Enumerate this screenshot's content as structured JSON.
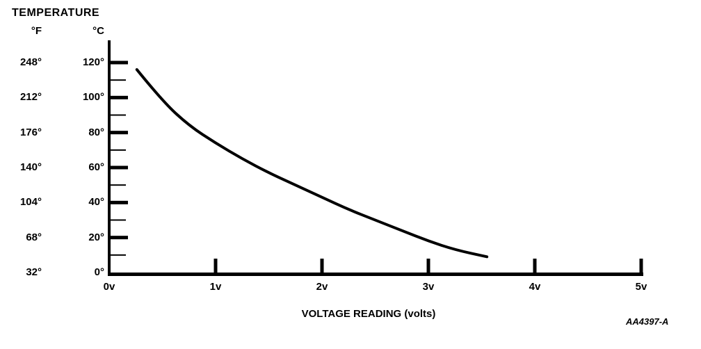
{
  "chart_data": {
    "type": "line",
    "title": "TEMPERATURE",
    "xlabel": "VOLTAGE READING (volts)",
    "figure_number": "AA4397-A",
    "line_color": "#000000",
    "background": "#ffffff",
    "grid": "off",
    "y_axis": {
      "fahrenheit_header": "°F",
      "celsius_header": "°C",
      "fahrenheit_labels": [
        "248°",
        "212°",
        "176°",
        "140°",
        "104°",
        "68°",
        "32°"
      ],
      "celsius_labels": [
        "120°",
        "100°",
        "80°",
        "60°",
        "40°",
        "20°",
        "0°"
      ],
      "major_ticks_c": [
        120,
        100,
        80,
        60,
        40,
        20,
        0
      ],
      "minor_ticks_c": [
        110,
        90,
        70,
        50,
        30,
        10
      ],
      "range_c": [
        0,
        120
      ]
    },
    "x_axis": {
      "tick_labels": [
        "0v",
        "1v",
        "2v",
        "3v",
        "4v",
        "5v"
      ],
      "tick_values": [
        0,
        1,
        2,
        3,
        4,
        5
      ],
      "range_volts": [
        0,
        5
      ]
    },
    "series": [
      {
        "name": "temperature-vs-voltage",
        "x_volts": [
          0.26,
          0.5,
          0.75,
          1.0,
          1.25,
          1.5,
          1.75,
          2.0,
          2.25,
          2.5,
          2.75,
          3.0,
          3.25,
          3.55
        ],
        "y_celsius": [
          116,
          98,
          84,
          74,
          65,
          57,
          50,
          43,
          36,
          30,
          24,
          18,
          13,
          9
        ]
      }
    ]
  }
}
